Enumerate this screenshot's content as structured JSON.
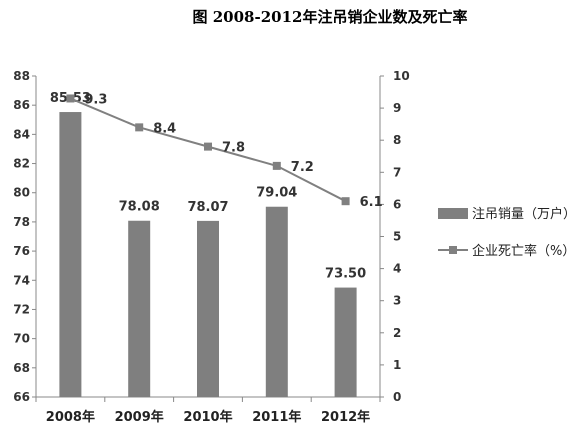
{
  "chart_data": {
    "type": "bar",
    "title": "图  2008-2012年注吊销企业数及死亡率",
    "categories": [
      "2008年",
      "2009年",
      "2010年",
      "2011年",
      "2012年"
    ],
    "series": [
      {
        "name": "注吊销量（万户）",
        "type": "bar",
        "axis": "left",
        "color": "#7f7f7f",
        "values": [
          85.53,
          78.08,
          78.07,
          79.04,
          73.5
        ],
        "labels": [
          "85.53",
          "78.08",
          "78.07",
          "79.04",
          "73.50"
        ]
      },
      {
        "name": "企业死亡率（%）",
        "type": "line",
        "axis": "right",
        "color": "#808080",
        "marker": "square",
        "values": [
          9.3,
          8.4,
          7.8,
          7.2,
          6.1
        ],
        "labels": [
          "9.3",
          "8.4",
          "7.8",
          "7.2",
          "6.1"
        ]
      }
    ],
    "y_left": {
      "min": 66,
      "max": 88,
      "step": 2,
      "ticks": [
        "66",
        "68",
        "70",
        "72",
        "74",
        "76",
        "78",
        "80",
        "82",
        "84",
        "86",
        "88"
      ]
    },
    "y_right": {
      "min": 0,
      "max": 10,
      "step": 1,
      "ticks": [
        "0",
        "1",
        "2",
        "3",
        "4",
        "5",
        "6",
        "7",
        "8",
        "9",
        "10"
      ]
    },
    "xlabel": "",
    "ylabel": "",
    "grid": false,
    "legend_position": "right"
  }
}
